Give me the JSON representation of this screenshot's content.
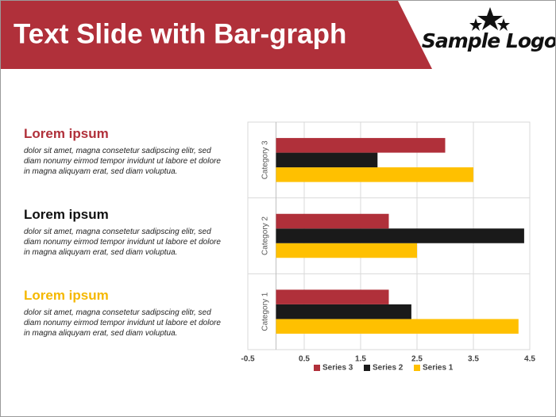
{
  "header": {
    "title": "Text Slide with Bar-graph",
    "logo": "Sample Logo"
  },
  "sections": [
    {
      "heading": "Lorem ipsum",
      "color": "#b0303a",
      "body": "dolor sit amet, magna consetetur sadipscing elitr, sed diam nonumy eirmod tempor invidunt ut labore et dolore in magna aliquyam erat, sed diam voluptua."
    },
    {
      "heading": "Lorem ipsum",
      "color": "#111111",
      "body": "dolor sit amet, magna consetetur sadipscing elitr, sed diam nonumy eirmod tempor invidunt ut labore et dolore in magna aliquyam erat, sed diam voluptua."
    },
    {
      "heading": "Lorem ipsum",
      "color": "#f5b800",
      "body": "dolor sit amet, magna consetetur sadipscing elitr, sed diam nonumy eirmod tempor invidunt ut labore et dolore in magna aliquyam erat, sed diam voluptua."
    }
  ],
  "chart_data": {
    "type": "hbar",
    "categories": [
      "Category 1",
      "Category 2",
      "Category 3"
    ],
    "series": [
      {
        "name": "Series 1",
        "color": "#ffc000",
        "values": [
          4.3,
          2.5,
          3.5
        ]
      },
      {
        "name": "Series 2",
        "color": "#1a1a1a",
        "values": [
          2.4,
          4.4,
          1.8
        ]
      },
      {
        "name": "Series 3",
        "color": "#b0303a",
        "values": [
          2,
          2,
          3
        ]
      }
    ],
    "xlim": [
      -0.5,
      4.5
    ],
    "xticks": [
      -0.5,
      0.5,
      1.5,
      2.5,
      3.5,
      4.5
    ],
    "grid": true,
    "legend": "bottom"
  }
}
